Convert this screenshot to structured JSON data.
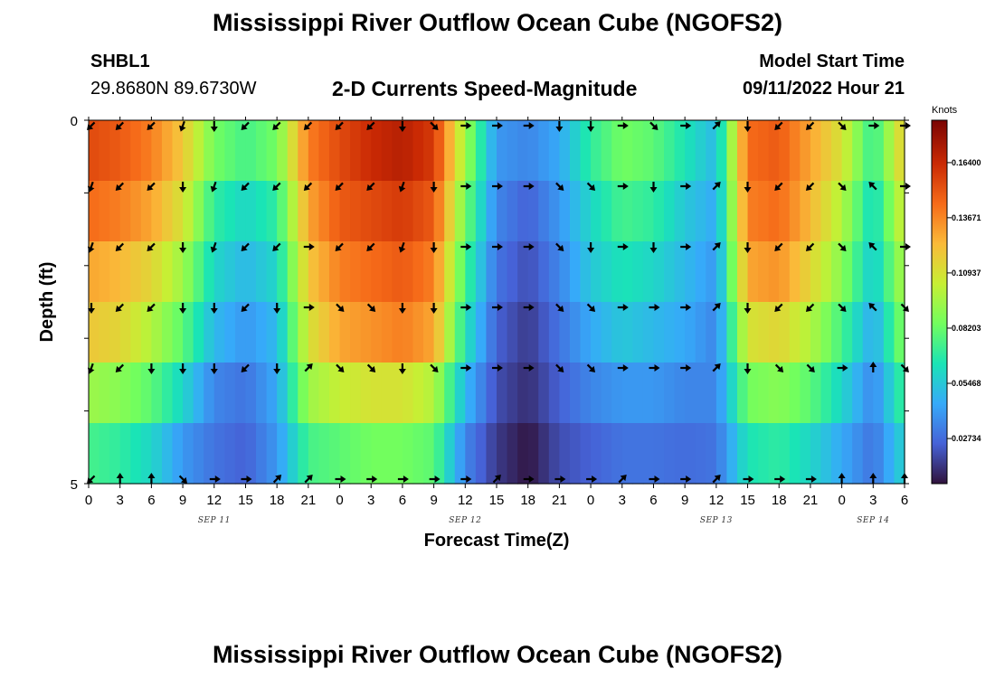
{
  "page": {
    "title": "Mississippi River Outflow Ocean Cube (NGOFS2)",
    "title_bottom": "Mississippi River Outflow Ocean Cube (NGOFS2)",
    "station_id": "SHBL1",
    "coordinates": "29.8680N  89.6730W",
    "subtitle": "2-D Currents Speed-Magnitude",
    "model_start_label": "Model Start Time",
    "model_start_value": "09/11/2022 Hour 21"
  },
  "chart_data": {
    "type": "heatmap",
    "title": "2-D Currents Speed-Magnitude",
    "xlabel": "Forecast Time(Z)",
    "ylabel": "Depth (ft)",
    "x_tick_labels": [
      "0",
      "3",
      "6",
      "9",
      "12",
      "15",
      "18",
      "21",
      "0",
      "3",
      "6",
      "9",
      "12",
      "15",
      "18",
      "21",
      "0",
      "3",
      "6",
      "9",
      "12",
      "15",
      "18",
      "21",
      "0",
      "3",
      "6"
    ],
    "date_labels": [
      {
        "text": "SEP 11",
        "tick_index": 4
      },
      {
        "text": "SEP 12",
        "tick_index": 12
      },
      {
        "text": "SEP 13",
        "tick_index": 20
      },
      {
        "text": "SEP 14",
        "tick_index": 25
      }
    ],
    "y_tick_labels": [
      {
        "text": "0",
        "value": 0
      },
      {
        "text": "5",
        "value": 5
      }
    ],
    "ylim": [
      0,
      5
    ],
    "colorbar": {
      "title": "Knots",
      "labels": [
        "0.16400",
        "0.13671",
        "0.10937",
        "0.08203",
        "0.05468",
        "0.02734"
      ],
      "min": 0.005,
      "max": 0.185
    },
    "colormap": [
      "#30123b",
      "#4662d7",
      "#36aaf9",
      "#1ae4b6",
      "#72fe5e",
      "#c7ef34",
      "#faba39",
      "#f66b19",
      "#ca2a04",
      "#7a0403"
    ],
    "speed_knots": {
      "hours": [
        0,
        3,
        6,
        9,
        12,
        15,
        18,
        21,
        24,
        27,
        30,
        33,
        36,
        39,
        42,
        45,
        48,
        51,
        54,
        57,
        60,
        63,
        66,
        69,
        72,
        75,
        78
      ],
      "depth_layers": [
        {
          "depth_band": "layer 1",
          "values": [
            0.155,
            0.15,
            0.14,
            0.12,
            0.085,
            0.075,
            0.085,
            0.14,
            0.155,
            0.165,
            0.17,
            0.16,
            0.095,
            0.04,
            0.035,
            0.045,
            0.07,
            0.085,
            0.08,
            0.065,
            0.05,
            0.145,
            0.15,
            0.13,
            0.11,
            0.07,
            0.12
          ]
        },
        {
          "depth_band": "layer 2",
          "values": [
            0.145,
            0.14,
            0.13,
            0.11,
            0.07,
            0.06,
            0.07,
            0.13,
            0.15,
            0.155,
            0.16,
            0.15,
            0.085,
            0.035,
            0.025,
            0.04,
            0.06,
            0.075,
            0.07,
            0.055,
            0.045,
            0.14,
            0.145,
            0.125,
            0.1,
            0.06,
            0.11
          ]
        },
        {
          "depth_band": "layer 3",
          "values": [
            0.13,
            0.125,
            0.115,
            0.095,
            0.06,
            0.05,
            0.06,
            0.12,
            0.14,
            0.145,
            0.15,
            0.14,
            0.075,
            0.03,
            0.02,
            0.035,
            0.055,
            0.065,
            0.06,
            0.05,
            0.04,
            0.13,
            0.135,
            0.115,
            0.09,
            0.055,
            0.1
          ]
        },
        {
          "depth_band": "layer 4",
          "values": [
            0.12,
            0.115,
            0.1,
            0.08,
            0.05,
            0.04,
            0.05,
            0.11,
            0.13,
            0.135,
            0.14,
            0.13,
            0.065,
            0.025,
            0.015,
            0.03,
            0.045,
            0.055,
            0.05,
            0.045,
            0.035,
            0.11,
            0.115,
            0.1,
            0.075,
            0.045,
            0.09
          ]
        },
        {
          "depth_band": "layer 5",
          "values": [
            0.095,
            0.09,
            0.08,
            0.06,
            0.035,
            0.03,
            0.045,
            0.095,
            0.105,
            0.11,
            0.11,
            0.1,
            0.05,
            0.02,
            0.012,
            0.025,
            0.035,
            0.04,
            0.04,
            0.035,
            0.035,
            0.085,
            0.09,
            0.08,
            0.06,
            0.035,
            0.075
          ]
        },
        {
          "depth_band": "layer 6",
          "values": [
            0.075,
            0.07,
            0.06,
            0.04,
            0.03,
            0.025,
            0.04,
            0.075,
            0.08,
            0.085,
            0.085,
            0.08,
            0.035,
            0.015,
            0.006,
            0.02,
            0.025,
            0.03,
            0.03,
            0.028,
            0.03,
            0.065,
            0.07,
            0.06,
            0.045,
            0.03,
            0.06
          ]
        }
      ]
    },
    "arrow_directions_deg": [
      [
        225,
        225,
        225,
        200,
        180,
        225,
        225,
        225,
        225,
        225,
        180,
        135,
        90,
        90,
        90,
        180,
        180,
        90,
        135,
        90,
        45,
        180,
        225,
        225,
        135,
        90,
        90
      ],
      [
        200,
        225,
        225,
        180,
        200,
        225,
        225,
        225,
        225,
        225,
        200,
        180,
        90,
        90,
        90,
        135,
        135,
        90,
        180,
        90,
        45,
        180,
        225,
        225,
        135,
        315,
        90
      ],
      [
        200,
        225,
        225,
        180,
        200,
        225,
        225,
        90,
        225,
        225,
        200,
        180,
        90,
        90,
        90,
        135,
        180,
        90,
        180,
        90,
        45,
        180,
        225,
        225,
        135,
        315,
        90
      ],
      [
        180,
        225,
        225,
        180,
        180,
        225,
        180,
        90,
        135,
        135,
        180,
        180,
        90,
        90,
        90,
        135,
        135,
        90,
        90,
        90,
        45,
        180,
        225,
        225,
        135,
        315,
        135
      ],
      [
        200,
        225,
        180,
        180,
        180,
        225,
        180,
        45,
        135,
        135,
        180,
        135,
        90,
        90,
        90,
        135,
        135,
        90,
        90,
        90,
        45,
        180,
        135,
        135,
        90,
        0,
        135
      ],
      [
        225,
        0,
        0,
        135,
        90,
        90,
        45,
        45,
        90,
        90,
        90,
        90,
        90,
        45,
        90,
        90,
        90,
        45,
        90,
        90,
        45,
        90,
        90,
        90,
        0,
        0,
        0
      ]
    ]
  }
}
